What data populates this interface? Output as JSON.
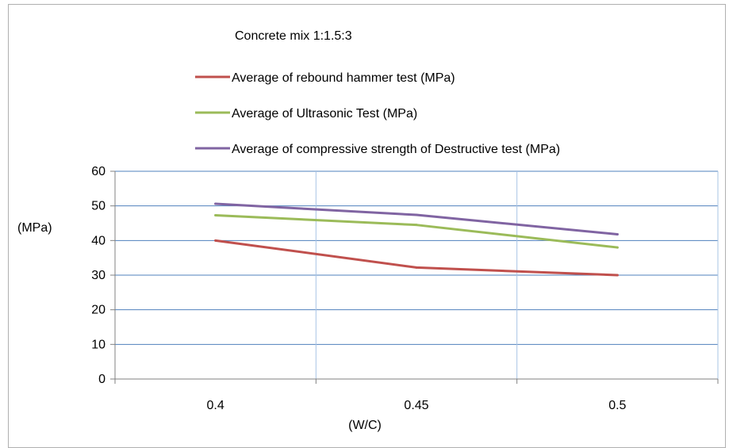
{
  "chart_data": {
    "type": "line",
    "title": "Concrete mix 1:1.5:3",
    "xlabel": "(W/C)",
    "ylabel": "(MPa)",
    "categories": [
      "0.4",
      "0.45",
      "0.5"
    ],
    "ylim": [
      0,
      60
    ],
    "yticks": [
      "0",
      "10",
      "20",
      "30",
      "40",
      "50",
      "60"
    ],
    "grid": true,
    "legend_position": "top",
    "series": [
      {
        "name": "Average of rebound hammer test (MPa)",
        "color": "#c0504d",
        "values": [
          40,
          32.2,
          30
        ]
      },
      {
        "name": "Average of Ultrasonic Test (MPa)",
        "color": "#9bbb59",
        "values": [
          47.3,
          44.5,
          38
        ]
      },
      {
        "name": "Average of compressive strength of Destructive test (MPa)",
        "color": "#8064a2",
        "values": [
          50.6,
          47.4,
          41.8
        ]
      }
    ]
  }
}
